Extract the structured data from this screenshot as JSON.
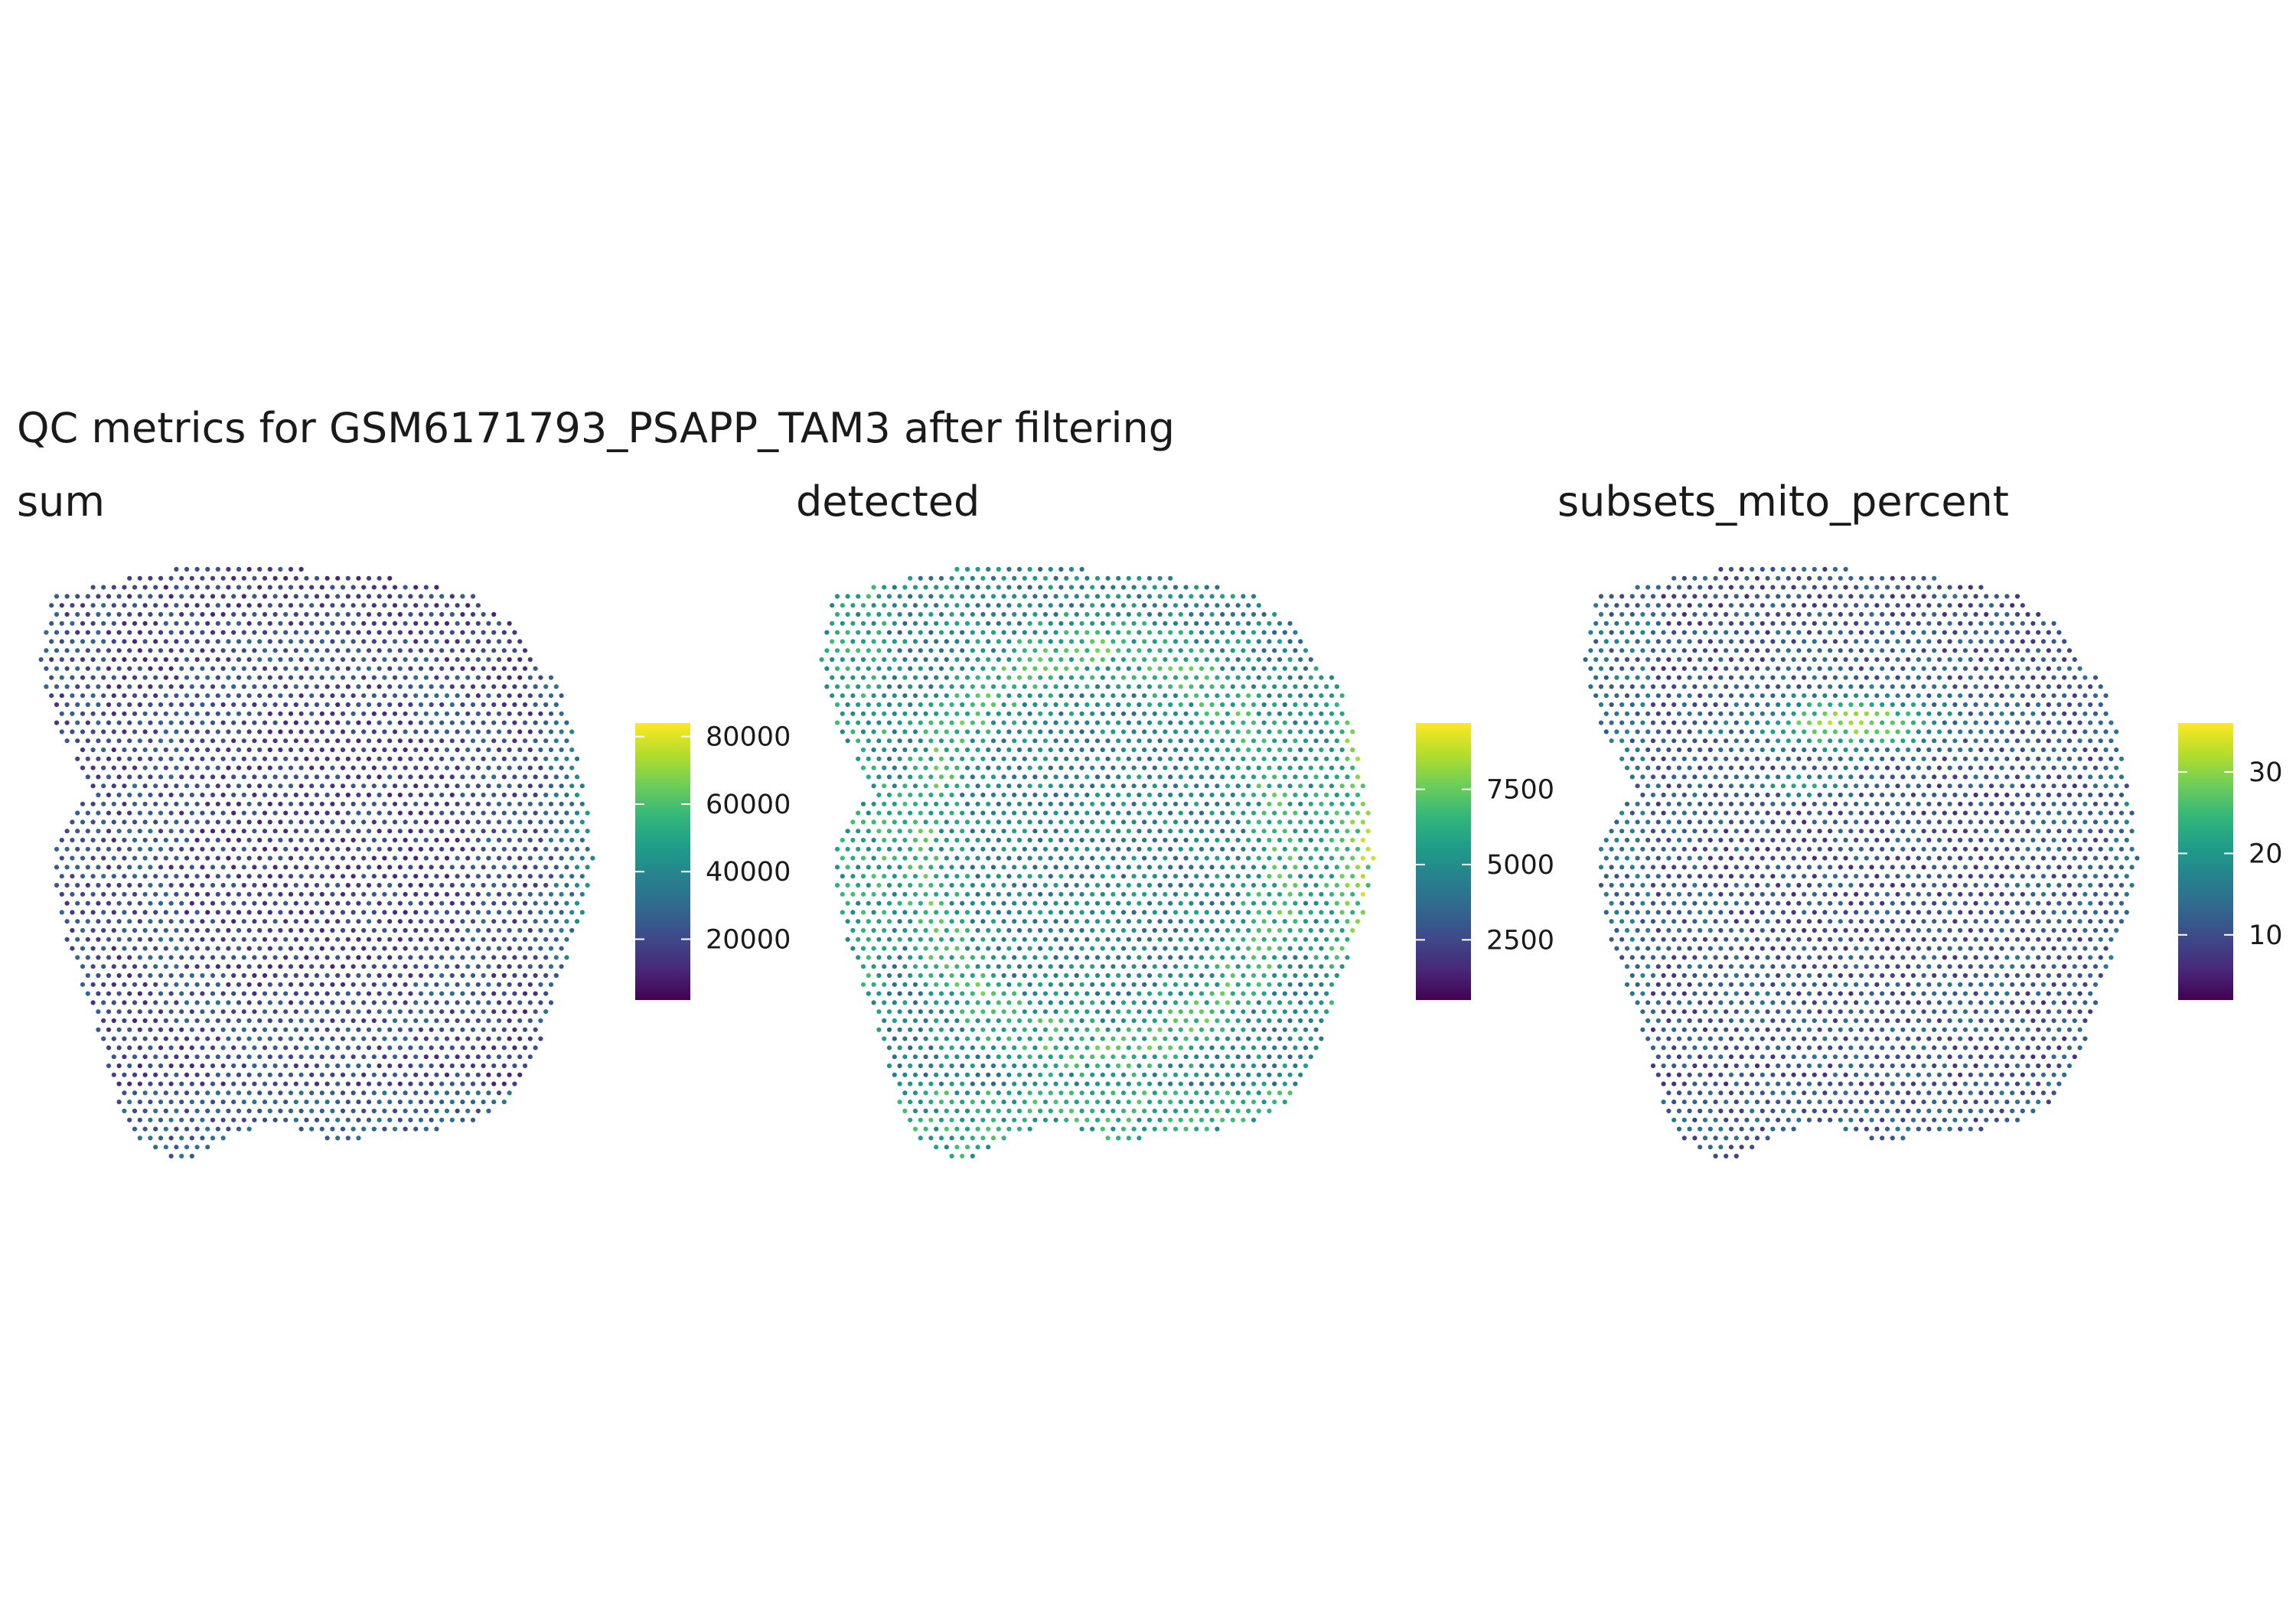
{
  "title": "QC metrics for GSM6171793_PSAPP_TAM3 after filtering",
  "colormap": [
    "#440154",
    "#482878",
    "#3e4989",
    "#31688e",
    "#26828e",
    "#1f9e89",
    "#35b779",
    "#6ece58",
    "#b5de2b",
    "#fde725"
  ],
  "chart_data": [
    {
      "type": "scatter",
      "title": "sum",
      "legend": "right",
      "colorbar_range": [
        2000,
        84000
      ],
      "colorbar_ticks": [
        {
          "value": 20000,
          "label": "20000"
        },
        {
          "value": 40000,
          "label": "40000"
        },
        {
          "value": 60000,
          "label": "60000"
        },
        {
          "value": 80000,
          "label": "80000"
        }
      ],
      "pattern": {
        "base": 0.2,
        "ring": 0.08,
        "right_edge": 0.25,
        "bottom": 0.1,
        "left": 0.05,
        "hotspot": 0.0,
        "noise": 0.1
      }
    },
    {
      "type": "scatter",
      "title": "detected",
      "legend": "right",
      "colorbar_range": [
        500,
        9700
      ],
      "colorbar_ticks": [
        {
          "value": 2500,
          "label": "2500"
        },
        {
          "value": 5000,
          "label": "5000"
        },
        {
          "value": 7500,
          "label": "7500"
        }
      ],
      "pattern": {
        "base": 0.45,
        "ring": 0.22,
        "right_edge": 0.35,
        "bottom": 0.15,
        "left": 0.12,
        "hotspot": 0.0,
        "noise": 0.14
      }
    },
    {
      "type": "scatter",
      "title": "subsets_mito_percent",
      "legend": "right",
      "colorbar_range": [
        2,
        36
      ],
      "colorbar_ticks": [
        {
          "value": 10,
          "label": "10"
        },
        {
          "value": 20,
          "label": "20"
        },
        {
          "value": 30,
          "label": "30"
        }
      ],
      "pattern": {
        "base": 0.25,
        "ring": 0.05,
        "right_edge": 0.1,
        "bottom": 0.05,
        "left": 0.1,
        "hotspot": 0.6,
        "noise": 0.12
      }
    }
  ]
}
